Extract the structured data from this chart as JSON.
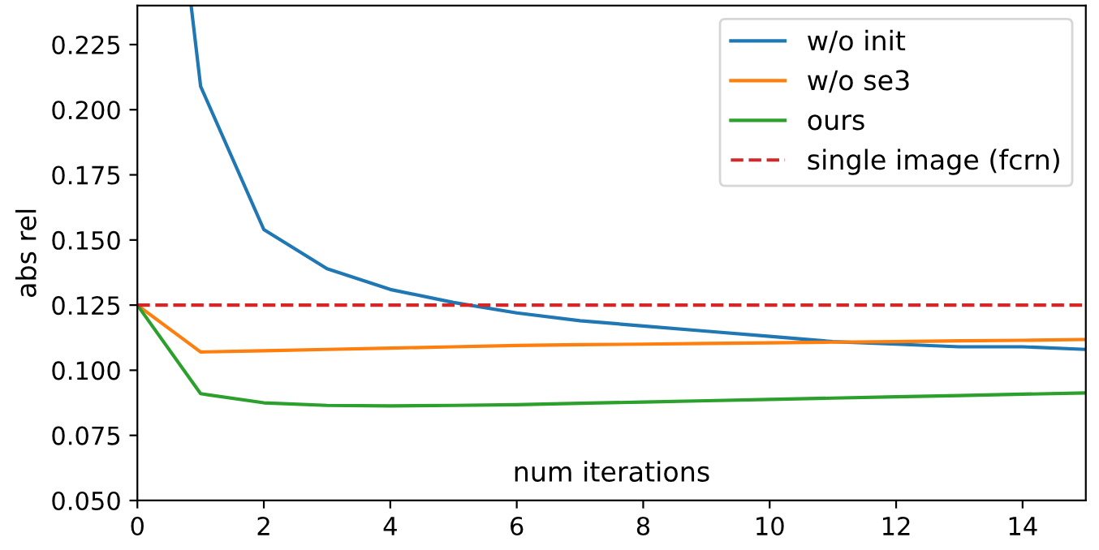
{
  "chart_data": {
    "type": "line",
    "xlabel": "num iterations",
    "ylabel": "abs rel",
    "xlim": [
      0,
      15
    ],
    "xticks": [
      0,
      2,
      4,
      6,
      8,
      10,
      12,
      14
    ],
    "ylim": [
      0.05,
      0.24
    ],
    "yticks": [
      {
        "value": 0.05,
        "label": "0.050"
      },
      {
        "value": 0.075,
        "label": "0.075"
      },
      {
        "value": 0.1,
        "label": "0.100"
      },
      {
        "value": 0.125,
        "label": "0.125"
      },
      {
        "value": 0.15,
        "label": "0.150"
      },
      {
        "value": 0.175,
        "label": "0.175"
      },
      {
        "value": 0.2,
        "label": "0.200"
      },
      {
        "value": 0.225,
        "label": "0.225"
      }
    ],
    "series": [
      {
        "name": "w/o init",
        "color": "#1f77b4",
        "x": [
          0.85,
          1,
          2,
          3,
          4,
          5,
          6,
          7,
          8,
          9,
          10,
          11,
          12,
          13,
          14,
          15
        ],
        "values": [
          0.24,
          0.209,
          0.154,
          0.139,
          0.131,
          0.126,
          0.122,
          0.119,
          0.117,
          0.115,
          0.113,
          0.111,
          0.11,
          0.109,
          0.109,
          0.108
        ]
      },
      {
        "name": "w/o se3",
        "color": "#ff7f0e",
        "x": [
          0,
          1,
          2,
          3,
          4,
          5,
          6,
          7,
          8,
          9,
          10,
          11,
          12,
          13,
          14,
          15
        ],
        "values": [
          0.125,
          0.107,
          0.1075,
          0.108,
          0.1085,
          0.109,
          0.1095,
          0.1098,
          0.11,
          0.1103,
          0.1105,
          0.1108,
          0.111,
          0.1113,
          0.1115,
          0.1118
        ]
      },
      {
        "name": "ours",
        "color": "#2ca02c",
        "x": [
          0,
          1,
          2,
          3,
          4,
          5,
          6,
          7,
          8,
          9,
          10,
          11,
          12,
          13,
          14,
          15
        ],
        "values": [
          0.125,
          0.091,
          0.0875,
          0.0865,
          0.0863,
          0.0865,
          0.0868,
          0.0873,
          0.0878,
          0.0883,
          0.0888,
          0.0893,
          0.0898,
          0.0903,
          0.0908,
          0.0913
        ]
      }
    ],
    "ref_lines": [
      {
        "axis": "y",
        "value": 0.125,
        "label": "single image (fcrn)",
        "color": "#d62728",
        "line_style": "dashed"
      }
    ],
    "legend": "top right",
    "grid": false
  }
}
